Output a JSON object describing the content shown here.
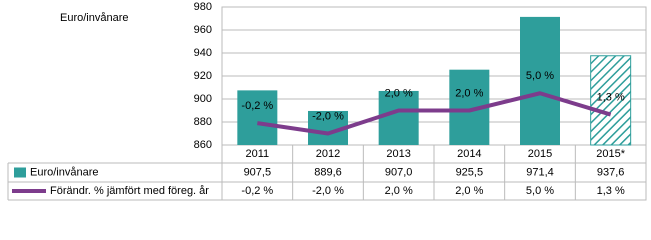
{
  "chart_data": {
    "type": "combo",
    "ylabel": "Euro/invånare",
    "categories": [
      "2011",
      "2012",
      "2013",
      "2014",
      "2015",
      "2015*"
    ],
    "series": [
      {
        "name": "Euro/invånare",
        "type": "bar",
        "color": "#2e9e9b",
        "values": [
          907.5,
          889.6,
          907.0,
          925.5,
          971.4,
          937.6
        ],
        "value_labels": [
          "907,5",
          "889,6",
          "907,0",
          "925,5",
          "971,4",
          "937,6"
        ],
        "hatched": [
          false,
          false,
          false,
          false,
          false,
          true
        ]
      },
      {
        "name": "Förändr. % jämfört med föreg. år",
        "type": "line",
        "axis": "y2",
        "color": "#7d3c8c",
        "values": [
          -0.2,
          -2.0,
          2.0,
          2.0,
          5.0,
          1.3
        ],
        "value_labels": [
          "-0,2 %",
          "-2,0 %",
          "2,0 %",
          "2,0 %",
          "5,0 %",
          "1,3 %"
        ]
      }
    ],
    "ylim": [
      860,
      980
    ],
    "yticks": [
      860,
      880,
      900,
      920,
      940,
      960,
      980
    ],
    "y2lim": [
      -4,
      20
    ],
    "grid": true
  }
}
